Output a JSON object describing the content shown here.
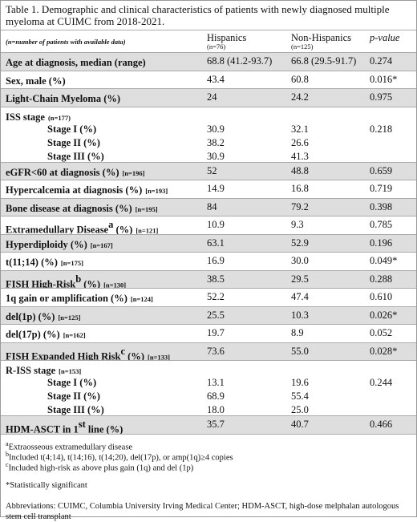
{
  "title": "Table 1. Demographic and clinical characteristics of patients with newly diagnosed multiple myeloma at CUIMC from 2018-2021.",
  "header": {
    "label": "(n=number of patients with available data)",
    "hispanics": "Hispanics",
    "hispanics_n": "(n=76)",
    "non_hispanics": "Non-Hispanics",
    "non_hispanics_n": "(n=125)",
    "p_value": "p-value"
  },
  "rows": [
    {
      "label": "Age at diagnosis, median (range)",
      "values": [
        "68.8 (41.2-93.7)",
        "66.8 (29.5-91.7)",
        "0.274"
      ]
    },
    {
      "label": "Sex, male (%)",
      "values": [
        "43.4",
        "60.8",
        "0.016*"
      ]
    },
    {
      "label": "Light-Chain Myeloma (%)",
      "values": [
        "24",
        "24.2",
        "0.975"
      ]
    },
    {
      "label": "ISS stage",
      "n": "(n=177)",
      "subrows": [
        {
          "label": "Stage I (%)",
          "values": [
            "30.9",
            "32.1",
            "0.218"
          ]
        },
        {
          "label": "Stage II (%)",
          "values": [
            "38.2",
            "26.6"
          ]
        },
        {
          "label": "Stage III (%)",
          "values": [
            "30.9",
            "41.3"
          ]
        }
      ]
    },
    {
      "label": "eGFR<60 at diagnosis (%)",
      "n": "[n=196]",
      "values": [
        "52",
        "48.8",
        "0.659"
      ]
    },
    {
      "label": "Hypercalcemia at diagnosis (%)",
      "n": "[n=193]",
      "values": [
        "14.9",
        "16.8",
        "0.719"
      ]
    },
    {
      "label": "Bone disease at diagnosis (%)",
      "n": "[n=195]",
      "values": [
        "84",
        "79.2",
        "0.398"
      ]
    },
    {
      "label": "Extramedullary Disease",
      "sup": "a",
      "tail": " (%)",
      "n": "[n=121]",
      "values": [
        "10.9",
        "9.3",
        "0.785"
      ]
    },
    {
      "label": "Hyperdiploidy (%)",
      "n": "[n=167]",
      "values": [
        "63.1",
        "52.9",
        "0.196"
      ]
    },
    {
      "label": "t(11;14) (%)",
      "n": "[n=175]",
      "values": [
        "16.9",
        "30.0",
        "0.049*"
      ]
    },
    {
      "label": "FISH High-Risk",
      "sup": "b",
      "tail": " (%)",
      "n": "[n=130]",
      "values": [
        "38.5",
        "29.5",
        "0.288"
      ]
    },
    {
      "label": "1q gain or amplification (%)",
      "n": "[n=124]",
      "values": [
        "52.2",
        "47.4",
        "0.610"
      ]
    },
    {
      "label": "del(1p) (%)",
      "n": "[n=125]",
      "values": [
        "25.5",
        "10.3",
        "0.026*"
      ]
    },
    {
      "label": "del(17p) (%)",
      "n": "[n=162]",
      "values": [
        "19.7",
        "8.9",
        "0.052"
      ]
    },
    {
      "label": "FISH Expanded High Risk",
      "sup": "c",
      "tail": " (%)",
      "n": "[n=133]",
      "values": [
        "73.6",
        "55.0",
        "0.028*"
      ]
    },
    {
      "label": "R-ISS stage",
      "n": "[n=153]",
      "subrows": [
        {
          "label": "Stage I (%)",
          "values": [
            "13.1",
            "19.6",
            "0.244"
          ]
        },
        {
          "label": "Stage II (%)",
          "values": [
            "68.9",
            "55.4"
          ]
        },
        {
          "label": "Stage III (%)",
          "values": [
            "18.0",
            "25.0"
          ]
        }
      ]
    },
    {
      "label": "HDM-ASCT in 1",
      "sup": "st",
      "tail": " line (%)",
      "values": [
        "35.7",
        "40.7",
        "0.466"
      ]
    }
  ],
  "footnotes": [
    {
      "mark": "a",
      "text": "Extraosseous extramedullary disease"
    },
    {
      "mark": "b",
      "text": "Included t(4;14), t(14;16), t(14;20), del(17p), or amp(1q)≥4 copies"
    },
    {
      "mark": "c",
      "text": "Included high-risk as above plus gain (1q) and del (1p)"
    }
  ],
  "significance": "*Statistically significant",
  "abbreviations": "Abbreviations: CUIMC, Columbia University Irving Medical Center; HDM-ASCT, high-dose melphalan autologous stem cell transplant"
}
